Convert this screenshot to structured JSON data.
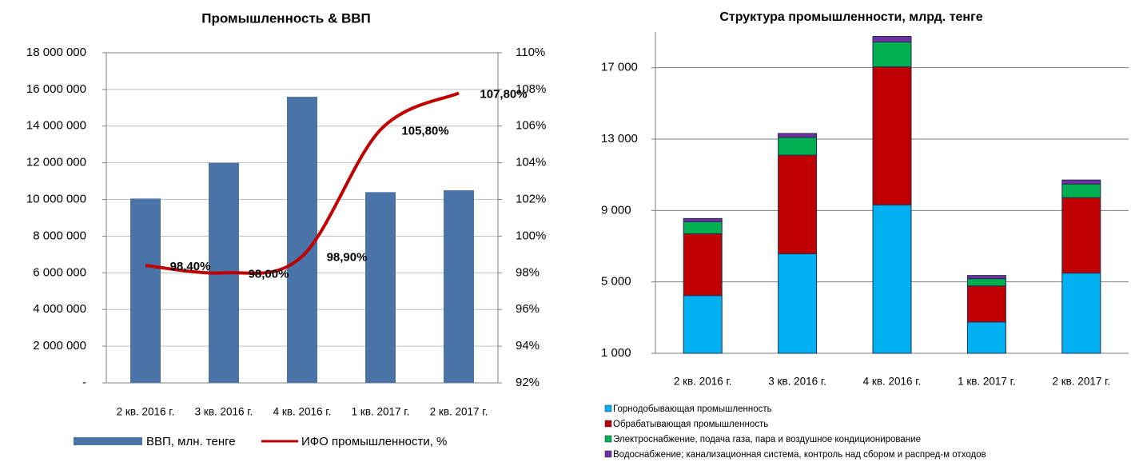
{
  "chart_data": [
    {
      "type": "bar_line",
      "title": "Промышленность & ВВП",
      "categories": [
        "2 кв. 2016 г.",
        "3 кв. 2016 г.",
        "4 кв. 2016 г.",
        "1 кв. 2017 г.",
        "2 кв. 2017 г."
      ],
      "series": [
        {
          "name": "ВВП, млн. тенге",
          "type": "bar",
          "color": "#4a73a8",
          "values": [
            10050000,
            12000000,
            15600000,
            10400000,
            10500000
          ]
        },
        {
          "name": "ИФО промышленности, %",
          "type": "line",
          "axis": "y2",
          "color": "#c00000",
          "values": [
            98.4,
            98.0,
            98.9,
            105.8,
            107.8
          ],
          "value_labels": [
            "98,40%",
            "98,00%",
            "98,90%",
            "105,80%",
            "107,80%"
          ]
        }
      ],
      "ylim": [
        0,
        18000000
      ],
      "yticks": [
        {
          "value": 0,
          "label": "-"
        },
        {
          "value": 2000000,
          "label": "2 000 000"
        },
        {
          "value": 4000000,
          "label": "4 000 000"
        },
        {
          "value": 6000000,
          "label": "6 000 000"
        },
        {
          "value": 8000000,
          "label": "8 000 000"
        },
        {
          "value": 10000000,
          "label": "10 000 000"
        },
        {
          "value": 12000000,
          "label": "12 000 000"
        },
        {
          "value": 14000000,
          "label": "14 000 000"
        },
        {
          "value": 16000000,
          "label": "16 000 000"
        },
        {
          "value": 18000000,
          "label": "18 000 000"
        }
      ],
      "y2lim": [
        92,
        110
      ],
      "y2ticks": [
        {
          "value": 92,
          "label": "92%"
        },
        {
          "value": 94,
          "label": "94%"
        },
        {
          "value": 96,
          "label": "96%"
        },
        {
          "value": 98,
          "label": "98%"
        },
        {
          "value": 100,
          "label": "100%"
        },
        {
          "value": 102,
          "label": "102%"
        },
        {
          "value": 104,
          "label": "104%"
        },
        {
          "value": 106,
          "label": "106%"
        },
        {
          "value": 108,
          "label": "108%"
        },
        {
          "value": 110,
          "label": "110%"
        }
      ],
      "grid": true,
      "legend": "bottom"
    },
    {
      "type": "stacked_bar",
      "title": "Структура промышленности, млрд. тенге",
      "categories": [
        "2 кв. 2016 г.",
        "3 кв. 2016 г.",
        "4 кв. 2016 г.",
        "1 кв. 2017 г.",
        "2 кв. 2017 г."
      ],
      "series": [
        {
          "name": "Горнодобывающая промышленность",
          "color": "#00b0f0",
          "values": [
            4236,
            6573,
            9315,
            2753,
            5494
          ]
        },
        {
          "name": "Обрабатывающая промышленность",
          "color": "#c00000",
          "values": [
            3461,
            5528,
            7730,
            2022,
            4225
          ]
        },
        {
          "name": "Электроснабжение, подача газа, пара и воздушное кондиционирование",
          "color": "#00b050",
          "values": [
            674,
            989,
            1393,
            405,
            764
          ]
        },
        {
          "name": "Водоснабжение; канализационная система, контроль над сбором и распред-м отходов",
          "color": "#7030a0",
          "values": [
            180,
            225,
            315,
            180,
            225
          ]
        }
      ],
      "ylim": [
        1000,
        19000
      ],
      "yticks": [
        {
          "value": 1000,
          "label": "1 000"
        },
        {
          "value": 5000,
          "label": "5 000"
        },
        {
          "value": 9000,
          "label": "9 000"
        },
        {
          "value": 13000,
          "label": "13 000"
        },
        {
          "value": 17000,
          "label": "17 000"
        }
      ],
      "grid": true,
      "legend": "bottom-left"
    }
  ]
}
